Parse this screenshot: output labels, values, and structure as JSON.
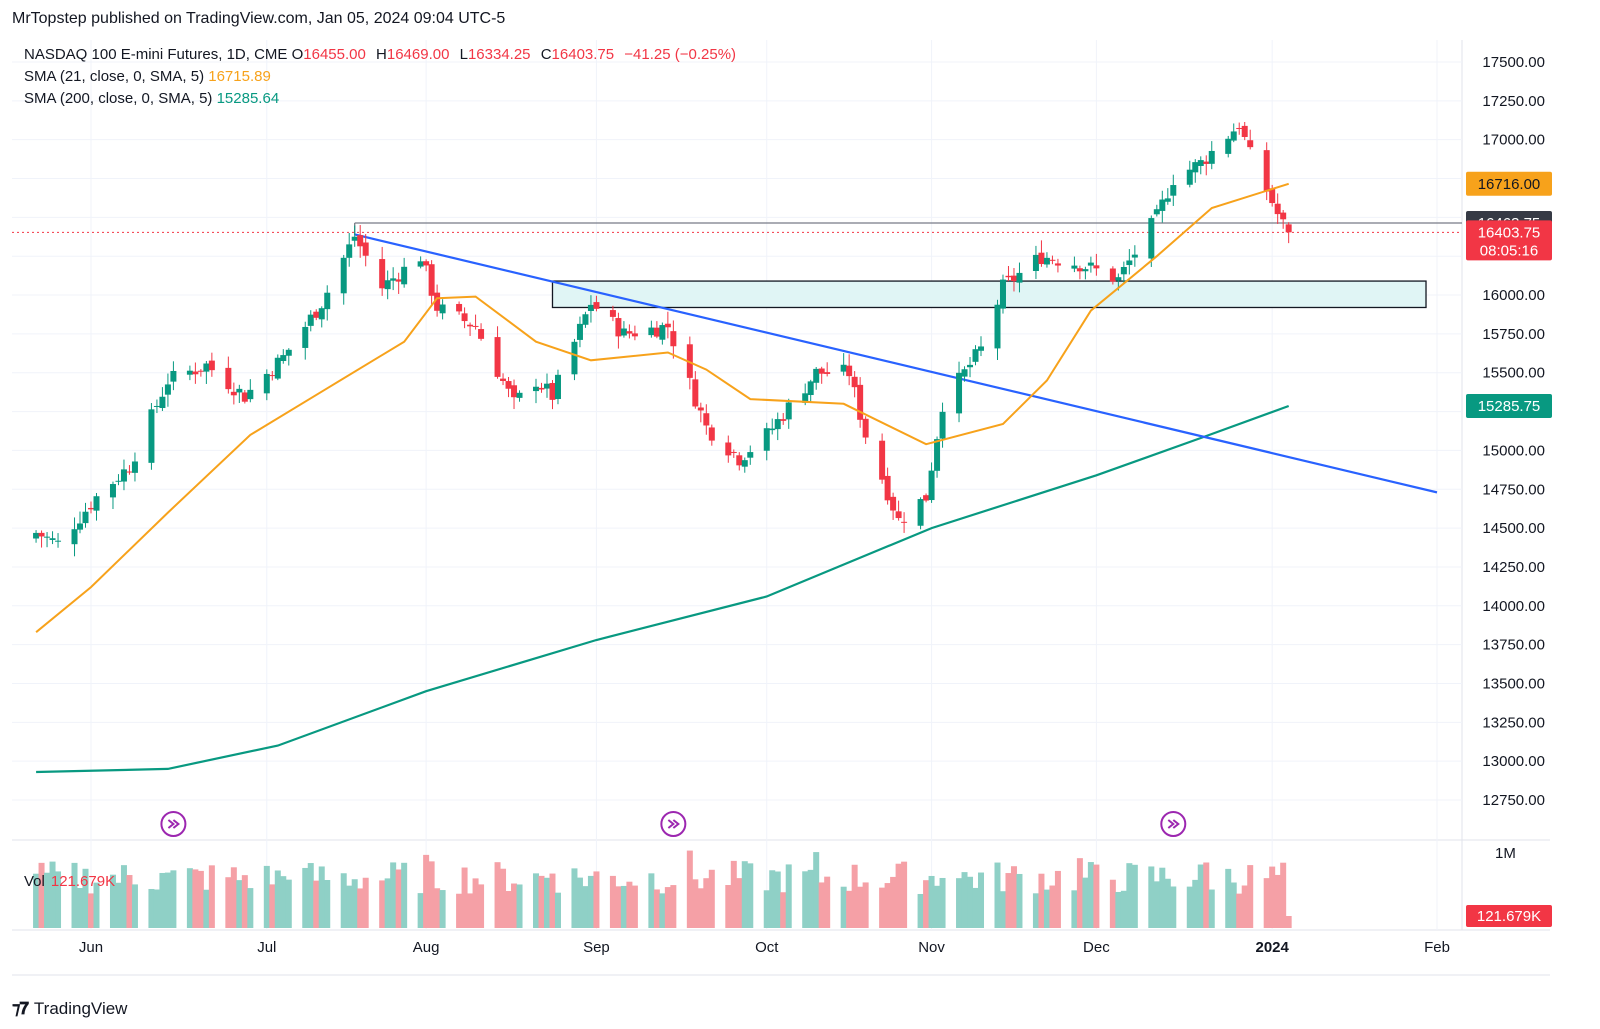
{
  "header": {
    "published": "MrTopstep published on TradingView.com, Jan 05, 2024 09:04 UTC-5"
  },
  "legend": {
    "symbol": "NASDAQ 100 E-mini Futures, 1D, CME",
    "o_label": "O",
    "o": "16455.00",
    "h_label": "H",
    "h": "16469.00",
    "l_label": "L",
    "l": "16334.25",
    "c_label": "C",
    "c": "16403.75",
    "change": "−41.25 (−0.25%)",
    "sma21_label": "SMA (21, close, 0, SMA, 5)",
    "sma21_value": "16715.89",
    "sma200_label": "SMA (200, close, 0, SMA, 5)",
    "sma200_value": "15285.64"
  },
  "volume_pane": {
    "label": "Vol",
    "value": "121.679K",
    "scale_label": "1M",
    "badge": "121.679K"
  },
  "price_badges": {
    "sma21": "16716.00",
    "level": "16463.75",
    "last": "16403.75",
    "countdown": "08:05:16",
    "sma200": "15285.75"
  },
  "brand": {
    "name": "TradingView"
  },
  "colors": {
    "up": "#089981",
    "down": "#f23645",
    "sma21": "#f7a21b",
    "sma200": "#089981",
    "trendline": "#2962ff",
    "zone_fill": "#e0f5f5",
    "vol_up": "#8fd0c6",
    "vol_down": "#f5a0a6"
  },
  "chart_data": {
    "type": "candlestick",
    "title": "NASDAQ 100 E-mini Futures, 1D, CME",
    "y_ticks": [
      17500,
      17250,
      17000,
      16750,
      16500,
      16250,
      16000,
      15750,
      15500,
      15250,
      15000,
      14750,
      14500,
      14250,
      14000,
      13750,
      13500,
      13250,
      13000,
      12750
    ],
    "y_tick_labels": [
      "17500.00",
      "17250.00",
      "17000.00",
      "",
      "",
      "",
      "16000.00",
      "15750.00",
      "15500.00",
      "",
      "15000.00",
      "14750.00",
      "14500.00",
      "14250.00",
      "14000.00",
      "13750.00",
      "13500.00",
      "13250.00",
      "13000.00",
      "12750.00"
    ],
    "x_labels": [
      {
        "date": "2023-06-01",
        "label": "Jun"
      },
      {
        "date": "2023-07-03",
        "label": "Jul"
      },
      {
        "date": "2023-08-01",
        "label": "Aug"
      },
      {
        "date": "2023-09-01",
        "label": "Sep"
      },
      {
        "date": "2023-10-02",
        "label": "Oct"
      },
      {
        "date": "2023-11-01",
        "label": "Nov"
      },
      {
        "date": "2023-12-01",
        "label": "Dec"
      },
      {
        "date": "2024-01-02",
        "label": "2024"
      },
      {
        "date": "2024-02-01",
        "label": "Feb"
      }
    ],
    "ylim": [
      12600,
      17650
    ],
    "anchor_points": [
      [
        "2023-05-22",
        14470
      ],
      [
        "2023-05-26",
        14400
      ],
      [
        "2023-06-02",
        14700
      ],
      [
        "2023-06-08",
        14900
      ],
      [
        "2023-06-15",
        15450
      ],
      [
        "2023-06-22",
        15550
      ],
      [
        "2023-06-29",
        15350
      ],
      [
        "2023-07-06",
        15600
      ],
      [
        "2023-07-13",
        15950
      ],
      [
        "2023-07-19",
        16380
      ],
      [
        "2023-07-24",
        16050
      ],
      [
        "2023-07-31",
        16250
      ],
      [
        "2023-08-03",
        15920
      ],
      [
        "2023-08-10",
        15800
      ],
      [
        "2023-08-17",
        15300
      ],
      [
        "2023-08-21",
        15450
      ],
      [
        "2023-08-24",
        15350
      ],
      [
        "2023-08-31",
        15950
      ],
      [
        "2023-09-06",
        15750
      ],
      [
        "2023-09-14",
        15800
      ],
      [
        "2023-09-21",
        15150
      ],
      [
        "2023-09-27",
        14950
      ],
      [
        "2023-10-02",
        15100
      ],
      [
        "2023-10-11",
        15500
      ],
      [
        "2023-10-17",
        15500
      ],
      [
        "2023-10-20",
        15100
      ],
      [
        "2023-10-26",
        14550
      ],
      [
        "2023-10-31",
        14700
      ],
      [
        "2023-11-03",
        15300
      ],
      [
        "2023-11-10",
        15650
      ],
      [
        "2023-11-14",
        16050
      ],
      [
        "2023-11-21",
        16250
      ],
      [
        "2023-11-28",
        16200
      ],
      [
        "2023-12-05",
        16100
      ],
      [
        "2023-12-12",
        16500
      ],
      [
        "2023-12-15",
        16750
      ],
      [
        "2023-12-20",
        16850
      ],
      [
        "2023-12-27",
        17100
      ],
      [
        "2023-12-29",
        16900
      ],
      [
        "2024-01-02",
        16600
      ],
      [
        "2024-01-03",
        16520
      ],
      [
        "2024-01-04",
        16455
      ]
    ],
    "last_bar": {
      "date": "2024-01-05",
      "open": 16455.0,
      "high": 16469.0,
      "low": 16334.25,
      "close": 16403.75
    },
    "sma21": [
      [
        "2023-05-22",
        13830
      ],
      [
        "2023-06-01",
        14120
      ],
      [
        "2023-06-15",
        14600
      ],
      [
        "2023-06-30",
        15100
      ],
      [
        "2023-07-14",
        15400
      ],
      [
        "2023-07-28",
        15700
      ],
      [
        "2023-08-03",
        15980
      ],
      [
        "2023-08-10",
        15990
      ],
      [
        "2023-08-21",
        15700
      ],
      [
        "2023-08-31",
        15580
      ],
      [
        "2023-09-14",
        15630
      ],
      [
        "2023-09-21",
        15520
      ],
      [
        "2023-09-29",
        15330
      ],
      [
        "2023-10-16",
        15300
      ],
      [
        "2023-10-31",
        15040
      ],
      [
        "2023-11-14",
        15170
      ],
      [
        "2023-11-22",
        15450
      ],
      [
        "2023-11-30",
        15900
      ],
      [
        "2023-12-12",
        16250
      ],
      [
        "2023-12-22",
        16560
      ],
      [
        "2024-01-05",
        16716
      ]
    ],
    "sma200": [
      [
        "2023-05-22",
        12930
      ],
      [
        "2023-06-15",
        12950
      ],
      [
        "2023-07-05",
        13100
      ],
      [
        "2023-08-01",
        13450
      ],
      [
        "2023-09-01",
        13780
      ],
      [
        "2023-10-02",
        14060
      ],
      [
        "2023-11-01",
        14500
      ],
      [
        "2023-12-01",
        14840
      ],
      [
        "2023-12-20",
        15080
      ],
      [
        "2024-01-05",
        15286
      ]
    ],
    "trendline": {
      "from": [
        "2023-07-19",
        16390
      ],
      "to": [
        "2024-02-01",
        14730
      ]
    },
    "horizontal_level": {
      "from": "2023-07-19",
      "value": 16463.75
    },
    "zone": {
      "from": "2023-08-24",
      "to": "2024-01-30",
      "low": 15920,
      "high": 16090
    }
  }
}
